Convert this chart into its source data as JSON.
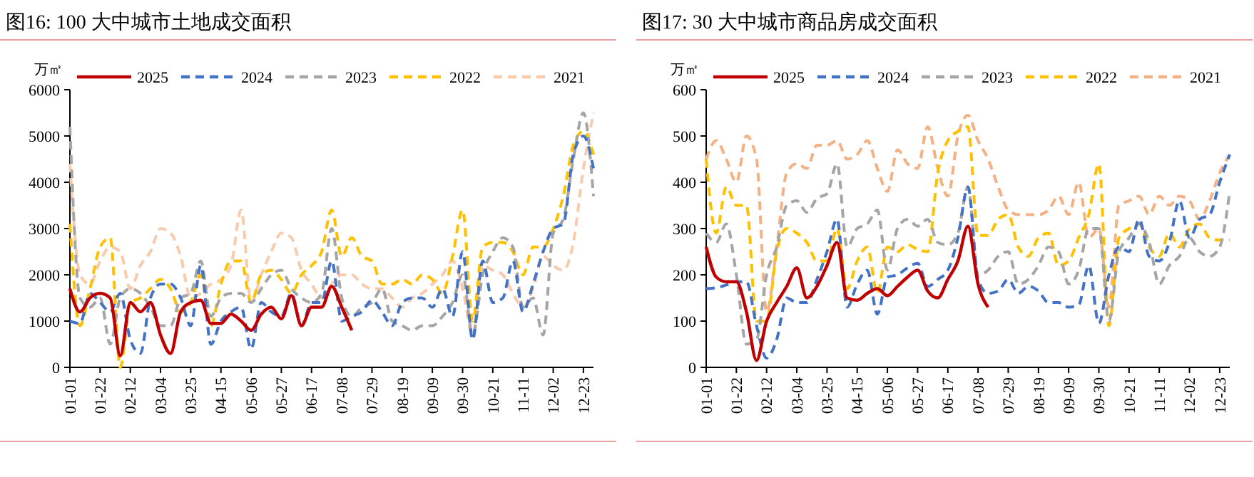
{
  "chart_data": [
    {
      "type": "line",
      "title": "图16:   100 大中城市土地成交面积",
      "ylabel": "万㎡",
      "legend": "top",
      "grid": false,
      "categories": [
        "01-01",
        null,
        null,
        "01-22",
        null,
        null,
        "02-12",
        null,
        null,
        "03-04",
        null,
        null,
        "03-25",
        null,
        null,
        "04-15",
        null,
        null,
        "05-06",
        null,
        null,
        "05-27",
        null,
        null,
        "06-17",
        null,
        null,
        "07-08",
        null,
        null,
        "07-29",
        null,
        null,
        "08-19",
        null,
        null,
        "09-09",
        null,
        null,
        "09-30",
        null,
        null,
        "10-21",
        null,
        null,
        "11-11",
        null,
        null,
        "12-02",
        null,
        null,
        "12-23",
        null
      ],
      "ylim": [
        0,
        6000
      ],
      "yticks": [
        0,
        1000,
        2000,
        3000,
        4000,
        5000,
        6000
      ],
      "series": [
        {
          "name": "2025",
          "color": "#c00000",
          "line_style": "solid",
          "values": [
            1700,
            1200,
            1500,
            1600,
            1500,
            250,
            1400,
            1200,
            1400,
            700,
            300,
            1200,
            1400,
            1450,
            950,
            950,
            1150,
            1000,
            800,
            1150,
            1300,
            1050,
            1550,
            900,
            1300,
            1300,
            1750,
            1300,
            800,
            null,
            null,
            null,
            null,
            null,
            null,
            null,
            null,
            null,
            null,
            null,
            null,
            null,
            null,
            null,
            null,
            null,
            null,
            null,
            null,
            null,
            null,
            null,
            null
          ]
        },
        {
          "name": "2024",
          "color": "#4472c4",
          "line_style": "dashed",
          "values": [
            1000,
            950,
            1600,
            1400,
            1200,
            1600,
            600,
            300,
            1500,
            1800,
            1800,
            1500,
            900,
            2200,
            500,
            1000,
            1200,
            1300,
            400,
            1400,
            1200,
            1100,
            1600,
            900,
            1400,
            1400,
            2300,
            1000,
            1100,
            1200,
            1450,
            1200,
            900,
            1400,
            1500,
            1500,
            1300,
            1700,
            1100,
            2500,
            600,
            2300,
            1400,
            1500,
            2300,
            1200,
            1800,
            2500,
            3000,
            3100,
            4600,
            5000,
            4300
          ]
        },
        {
          "name": "2023",
          "color": "#a5a5a5",
          "line_style": "dashed",
          "values": [
            5200,
            1500,
            1300,
            1500,
            500,
            1500,
            1700,
            1600,
            1300,
            900,
            900,
            1500,
            1600,
            2300,
            1100,
            1500,
            1600,
            1600,
            1400,
            1700,
            2000,
            2100,
            1700,
            1500,
            1400,
            1600,
            3000,
            1500,
            1100,
            1300,
            1400,
            1700,
            1000,
            900,
            800,
            900,
            900,
            1100,
            1400,
            2000,
            700,
            2000,
            2500,
            2800,
            2600,
            1300,
            1500,
            700,
            2900,
            3200,
            4500,
            5500,
            3700
          ]
        },
        {
          "name": "2022",
          "color": "#ffc000",
          "line_style": "dashed",
          "values": [
            3100,
            900,
            1700,
            2600,
            2800,
            0,
            1400,
            1500,
            1700,
            1900,
            1700,
            1200,
            1400,
            2000,
            900,
            1800,
            2300,
            2300,
            1400,
            2000,
            2100,
            1900,
            1600,
            2000,
            2200,
            2500,
            3400,
            2400,
            2800,
            2400,
            2300,
            1800,
            1800,
            1900,
            1800,
            2000,
            1900,
            1600,
            2400,
            3400,
            1000,
            2600,
            2700,
            2700,
            2500,
            2000,
            2600,
            2600,
            3000,
            3700,
            4800,
            5100,
            4600
          ]
        },
        {
          "name": "2021",
          "color": "#f8cbad",
          "line_style": "dashed",
          "values": [
            4400,
            2000,
            1800,
            2300,
            2600,
            2500,
            1700,
            2200,
            2500,
            3000,
            2900,
            2400,
            1500,
            1600,
            1800,
            1900,
            2200,
            3400,
            1400,
            2000,
            2500,
            2900,
            2800,
            2100,
            1800,
            1500,
            1800,
            2000,
            2000,
            1800,
            1700,
            1700,
            1500,
            1300,
            1500,
            1600,
            1800,
            2000,
            2300,
            1700,
            700,
            2200,
            2100,
            2000,
            1600,
            1300,
            1700,
            2400,
            2200,
            2100,
            2700,
            4300,
            5500
          ]
        }
      ]
    },
    {
      "type": "line",
      "title": "图17:   30 大中城市商品房成交面积",
      "ylabel": "万㎡",
      "legend": "top",
      "grid": false,
      "categories": [
        "01-01",
        null,
        null,
        "01-22",
        null,
        null,
        "02-12",
        null,
        null,
        "03-04",
        null,
        null,
        "03-25",
        null,
        null,
        "04-15",
        null,
        null,
        "05-06",
        null,
        null,
        "05-27",
        null,
        null,
        "06-17",
        null,
        null,
        "07-08",
        null,
        null,
        "07-29",
        null,
        null,
        "08-19",
        null,
        null,
        "09-09",
        null,
        null,
        "09-30",
        null,
        null,
        "10-21",
        null,
        null,
        "11-11",
        null,
        null,
        "12-02",
        null,
        null,
        "12-23",
        null
      ],
      "ylim": [
        0,
        600
      ],
      "yticks": [
        0,
        100,
        200,
        300,
        400,
        500,
        600
      ],
      "series": [
        {
          "name": "2025",
          "color": "#c00000",
          "line_style": "solid",
          "values": [
            260,
            195,
            185,
            185,
            120,
            15,
            100,
            140,
            175,
            215,
            150,
            175,
            220,
            270,
            150,
            145,
            160,
            170,
            155,
            175,
            195,
            210,
            165,
            150,
            190,
            230,
            305,
            180,
            130,
            null,
            null,
            null,
            null,
            null,
            null,
            null,
            null,
            null,
            null,
            null,
            null,
            null,
            null,
            null,
            null,
            null,
            null,
            null,
            null,
            null,
            null,
            null,
            null
          ]
        },
        {
          "name": "2024",
          "color": "#4472c4",
          "line_style": "dashed",
          "values": [
            170,
            172,
            178,
            185,
            185,
            90,
            20,
            60,
            150,
            140,
            140,
            190,
            250,
            320,
            130,
            180,
            210,
            115,
            195,
            200,
            215,
            225,
            175,
            190,
            210,
            280,
            390,
            190,
            160,
            165,
            190,
            160,
            175,
            165,
            140,
            140,
            130,
            135,
            220,
            95,
            200,
            260,
            250,
            320,
            240,
            230,
            270,
            360,
            280,
            320,
            330,
            400,
            460
          ]
        },
        {
          "name": "2023",
          "color": "#a5a5a5",
          "line_style": "dashed",
          "values": [
            290,
            270,
            310,
            200,
            50,
            60,
            200,
            260,
            350,
            360,
            335,
            365,
            375,
            440,
            260,
            300,
            310,
            340,
            210,
            300,
            320,
            305,
            320,
            270,
            265,
            290,
            390,
            200,
            210,
            240,
            250,
            180,
            190,
            220,
            260,
            250,
            180,
            210,
            300,
            300,
            100,
            250,
            280,
            310,
            270,
            180,
            220,
            240,
            280,
            250,
            240,
            260,
            380
          ]
        },
        {
          "name": "2022",
          "color": "#ffc000",
          "line_style": "dashed",
          "values": [
            450,
            290,
            390,
            350,
            350,
            100,
            100,
            250,
            300,
            290,
            270,
            230,
            230,
            300,
            170,
            230,
            260,
            160,
            260,
            250,
            265,
            255,
            250,
            420,
            490,
            510,
            520,
            285,
            285,
            320,
            330,
            260,
            240,
            280,
            290,
            220,
            230,
            280,
            330,
            440,
            90,
            280,
            300,
            310,
            260,
            240,
            290,
            260,
            300,
            310,
            280,
            275,
            275
          ]
        },
        {
          "name": "2021",
          "color": "#f4b183",
          "line_style": "dashed",
          "values": [
            450,
            490,
            450,
            400,
            500,
            450,
            120,
            260,
            420,
            440,
            430,
            480,
            480,
            490,
            450,
            460,
            490,
            430,
            380,
            470,
            440,
            430,
            520,
            430,
            370,
            500,
            545,
            490,
            450,
            390,
            340,
            330,
            330,
            330,
            340,
            370,
            330,
            400,
            280,
            300,
            130,
            350,
            360,
            370,
            330,
            370,
            350,
            370,
            360,
            320,
            360,
            420,
            460
          ]
        }
      ]
    }
  ]
}
